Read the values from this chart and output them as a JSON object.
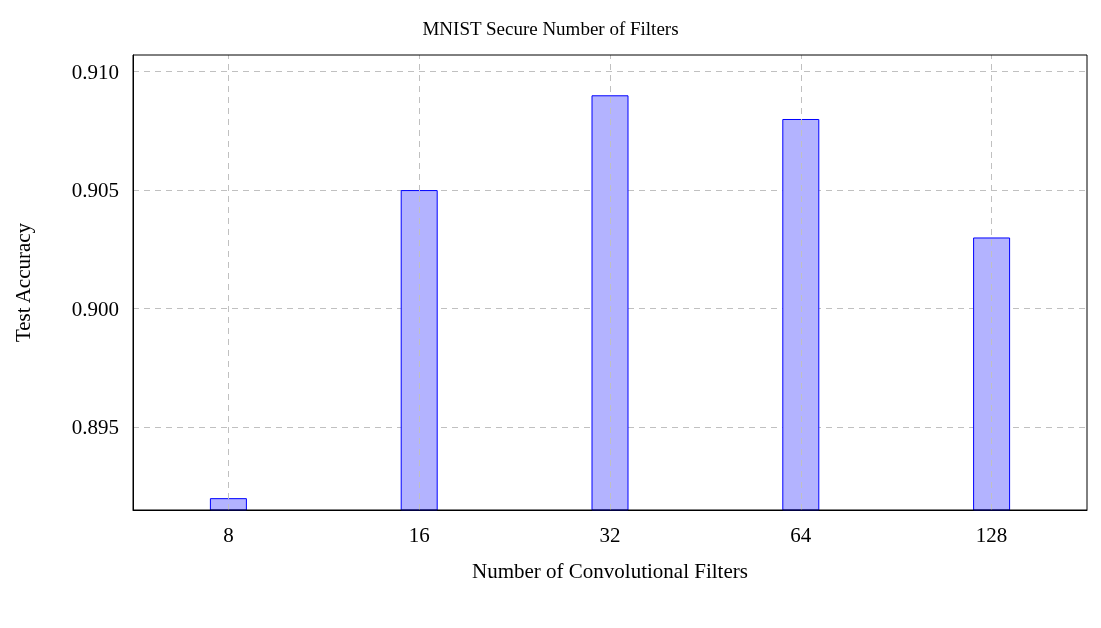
{
  "chart_data": {
    "type": "bar",
    "title": "MNIST Secure Number of Filters",
    "xlabel": "Number of Convolutional Filters",
    "ylabel": "Test Accuracy",
    "categories": [
      "8",
      "16",
      "32",
      "64",
      "128"
    ],
    "values": [
      0.892,
      0.905,
      0.909,
      0.908,
      0.903
    ],
    "color": "#b3b3ff",
    "ylim": [
      0.8915,
      0.9107
    ],
    "yticks": [
      0.895,
      {
        "value": 0.9,
        "label": "0.900"
      },
      0.905,
      {
        "value": 0.91,
        "label": "0.910"
      }
    ],
    "grid": true
  }
}
